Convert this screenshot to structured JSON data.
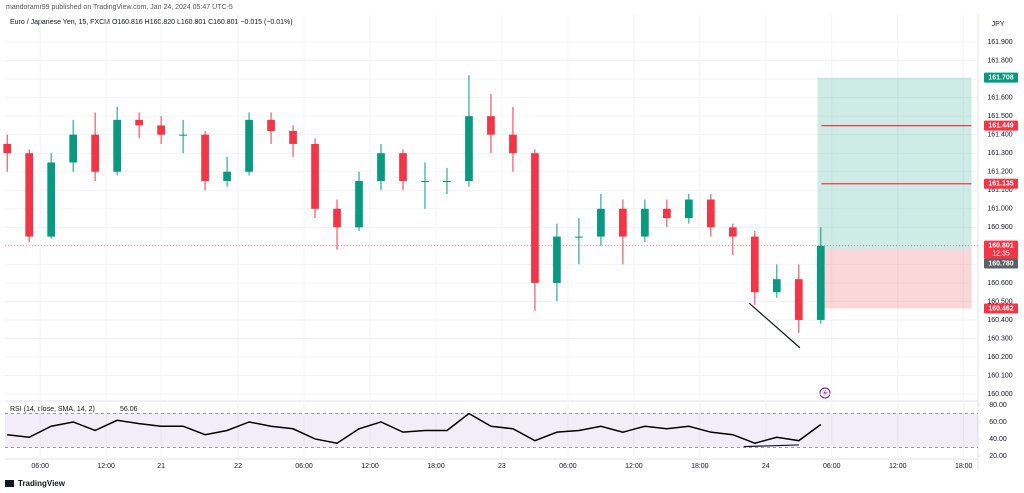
{
  "chart_data": [
    {
      "type": "candlestick",
      "title": "mandoramr99 published on TradingView.com, Jan 24, 2024 05:47 UTC-5",
      "subtitle": "Euro / Japanese Yen, 15, FXCM  O160.816 H160.820 L160.801 C160.801 −0.015 (−0.01%)",
      "y_label": "JPY",
      "source": "TradingView",
      "up_color": "#089981",
      "down_color": "#f23645",
      "grid": true,
      "x": [
        3,
        5,
        7,
        9,
        11,
        13,
        15,
        17,
        19,
        21,
        23,
        25,
        27,
        29,
        31,
        33,
        35,
        37,
        39,
        41,
        43,
        45,
        47,
        49,
        51,
        53,
        55,
        57,
        59,
        61,
        63,
        65,
        67,
        69,
        71,
        73,
        75,
        77
      ],
      "open": [
        161.35,
        161.3,
        160.85,
        161.25,
        161.4,
        161.2,
        161.48,
        161.45,
        161.4,
        161.4,
        161.15,
        161.2,
        161.48,
        161.42,
        161.35,
        161.0,
        160.9,
        161.15,
        161.3,
        161.15,
        161.15,
        161.15,
        161.5,
        161.4,
        161.3,
        160.6,
        160.85,
        160.85,
        161.0,
        160.85,
        161.0,
        160.95,
        161.05,
        160.9,
        160.85,
        160.55,
        160.62,
        160.4
      ],
      "high": [
        161.4,
        161.32,
        161.3,
        161.48,
        161.52,
        161.55,
        161.52,
        161.5,
        161.48,
        161.42,
        161.28,
        161.52,
        161.52,
        161.45,
        161.38,
        161.05,
        161.2,
        161.35,
        161.32,
        161.25,
        161.22,
        161.72,
        161.62,
        161.55,
        161.32,
        160.92,
        160.95,
        161.08,
        161.05,
        161.05,
        161.05,
        161.08,
        161.08,
        160.92,
        160.88,
        160.7,
        160.7,
        160.9
      ],
      "low": [
        161.2,
        160.82,
        160.84,
        161.2,
        161.15,
        161.18,
        161.38,
        161.35,
        161.3,
        161.1,
        161.12,
        161.18,
        161.35,
        161.28,
        160.95,
        160.78,
        160.88,
        161.1,
        161.1,
        161.0,
        161.08,
        161.12,
        161.3,
        161.2,
        160.45,
        160.5,
        160.7,
        160.8,
        160.7,
        160.82,
        160.9,
        160.92,
        160.85,
        160.75,
        160.48,
        160.52,
        160.33,
        160.38
      ],
      "close": [
        161.3,
        160.85,
        161.25,
        161.4,
        161.2,
        161.48,
        161.45,
        161.4,
        161.4,
        161.15,
        161.2,
        161.48,
        161.42,
        161.35,
        161.0,
        160.9,
        161.15,
        161.3,
        161.15,
        161.15,
        161.15,
        161.5,
        161.4,
        161.3,
        160.6,
        160.85,
        160.85,
        161.0,
        160.85,
        161.0,
        160.95,
        161.05,
        160.9,
        160.85,
        160.55,
        160.62,
        160.4,
        160.8
      ],
      "xlim": [
        2.8,
        91.3
      ],
      "xticks": [
        {
          "value": 6,
          "label": "06:00"
        },
        {
          "value": 12,
          "label": "12:00"
        },
        {
          "value": 17,
          "label": "21"
        },
        {
          "value": 24,
          "label": "22"
        },
        {
          "value": 30,
          "label": "06:00"
        },
        {
          "value": 36,
          "label": "12:00"
        },
        {
          "value": 42,
          "label": "18:00"
        },
        {
          "value": 48,
          "label": "23"
        },
        {
          "value": 54,
          "label": "06:00"
        },
        {
          "value": 60,
          "label": "12:00"
        },
        {
          "value": 66,
          "label": "18:00"
        },
        {
          "value": 72,
          "label": "24"
        },
        {
          "value": 78,
          "label": "06:00"
        },
        {
          "value": 84,
          "label": "12:00"
        },
        {
          "value": 90,
          "label": "18:00"
        }
      ],
      "ylim": [
        159.968,
        162.046
      ],
      "yticks": [
        {
          "value": 160.0,
          "label": "160.000"
        },
        {
          "value": 160.1,
          "label": "160.100"
        },
        {
          "value": 160.2,
          "label": "160.200"
        },
        {
          "value": 160.3,
          "label": "160.300"
        },
        {
          "value": 160.4,
          "label": "160.400"
        },
        {
          "value": 160.5,
          "label": "160.500"
        },
        {
          "value": 160.6,
          "label": "160.600"
        },
        {
          "value": 160.7,
          "label": "160.700"
        },
        {
          "value": 160.8,
          "label": "160.800"
        },
        {
          "value": 160.9,
          "label": "160.900"
        },
        {
          "value": 161.0,
          "label": "161.000"
        },
        {
          "value": 161.1,
          "label": "161.100"
        },
        {
          "value": 161.2,
          "label": "161.200"
        },
        {
          "value": 161.3,
          "label": "161.300"
        },
        {
          "value": 161.4,
          "label": "161.400"
        },
        {
          "value": 161.5,
          "label": "161.500"
        },
        {
          "value": 161.6,
          "label": "161.600"
        },
        {
          "value": 161.7,
          "label": "161.700"
        },
        {
          "value": 161.8,
          "label": "161.800"
        },
        {
          "value": 161.9,
          "label": "161.900"
        }
      ],
      "price_labels": [
        {
          "value": 161.708,
          "kind": "target",
          "color": "#089981"
        },
        {
          "value": 161.449,
          "kind": "line",
          "color": "#f23645"
        },
        {
          "value": 161.135,
          "kind": "line",
          "color": "#f23645"
        },
        {
          "value": 160.801,
          "kind": "last",
          "color": "#f23645",
          "timer": "12:35"
        },
        {
          "value": 160.78,
          "label": "160.780",
          "kind": "entry",
          "color": "#5d606b"
        },
        {
          "value": 160.462,
          "kind": "stop",
          "color": "#f23645"
        }
      ],
      "position_x": [
        76.7,
        90.7
      ],
      "trendlines": [
        {
          "x": [
            70.5,
            75.1
          ],
          "y": [
            160.49,
            160.25
          ]
        }
      ]
    },
    {
      "type": "line",
      "title": "RSI (14, close, SMA, 14, 2)",
      "value_text": "56.06",
      "color": "#000000",
      "band": [
        30,
        70
      ],
      "band_color": "#7e57c2",
      "x": [
        3,
        5,
        7,
        9,
        11,
        13,
        15,
        17,
        19,
        21,
        23,
        25,
        27,
        29,
        31,
        33,
        35,
        37,
        39,
        41,
        43,
        45,
        47,
        49,
        51,
        53,
        55,
        57,
        59,
        61,
        63,
        65,
        67,
        69,
        71,
        73,
        75,
        77
      ],
      "values": [
        45,
        42,
        55,
        60,
        50,
        62,
        58,
        55,
        55,
        45,
        50,
        60,
        55,
        52,
        40,
        35,
        52,
        60,
        48,
        50,
        50,
        70,
        55,
        52,
        38,
        48,
        50,
        55,
        48,
        55,
        52,
        55,
        48,
        45,
        35,
        42,
        38,
        57
      ],
      "xlim": [
        2.8,
        91.3
      ],
      "ylim": [
        17.6,
        83.5
      ],
      "yticks": [
        {
          "value": 20,
          "label": "20.00"
        },
        {
          "value": 40,
          "label": "40.00"
        },
        {
          "value": 60,
          "label": "60.00"
        },
        {
          "value": 80,
          "label": "80.00"
        }
      ],
      "trendlines": [
        {
          "x": [
            70,
            75
          ],
          "y": [
            31,
            33
          ]
        }
      ]
    }
  ]
}
